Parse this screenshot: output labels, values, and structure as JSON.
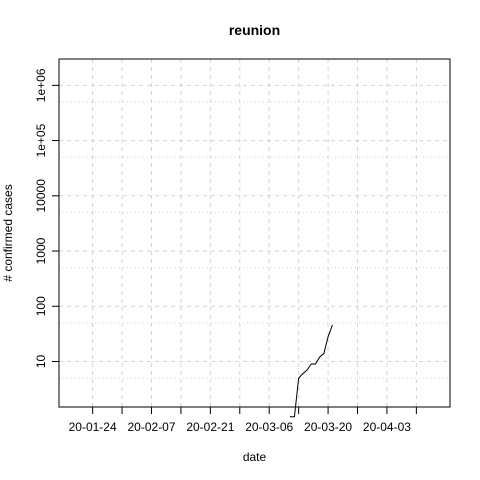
{
  "chart_data": {
    "type": "line",
    "title": "reunion",
    "xlabel": "date",
    "ylabel": "# confirmed cases",
    "y_scale": "log",
    "ylim": [
      1.5,
      3000000
    ],
    "xlim": [
      "2020-01-16",
      "2020-04-18"
    ],
    "grid": true,
    "x_ticks": [
      {
        "date": "2020-01-24",
        "label": "20-01-24"
      },
      {
        "date": "2020-02-07",
        "label": "20-02-07"
      },
      {
        "date": "2020-02-21",
        "label": "20-02-21"
      },
      {
        "date": "2020-03-06",
        "label": "20-03-06"
      },
      {
        "date": "2020-03-20",
        "label": "20-03-20"
      },
      {
        "date": "2020-04-03",
        "label": "20-04-03"
      }
    ],
    "x_minor_ticks": [
      "2020-01-31",
      "2020-02-14",
      "2020-02-28",
      "2020-03-13",
      "2020-03-27",
      "2020-04-10"
    ],
    "y_ticks": [
      {
        "value": 10,
        "label": "10"
      },
      {
        "value": 100,
        "label": "100"
      },
      {
        "value": 1000,
        "label": "1000"
      },
      {
        "value": 10000,
        "label": "10000"
      },
      {
        "value": 100000,
        "label": "1e+05"
      },
      {
        "value": 1000000,
        "label": "1e+06"
      }
    ],
    "series": [
      {
        "color": "#000000",
        "points": [
          {
            "x": "2020-03-11",
            "y": 1
          },
          {
            "x": "2020-03-12",
            "y": 1
          },
          {
            "x": "2020-03-13",
            "y": 5
          },
          {
            "x": "2020-03-14",
            "y": 6
          },
          {
            "x": "2020-03-15",
            "y": 7
          },
          {
            "x": "2020-03-16",
            "y": 9
          },
          {
            "x": "2020-03-17",
            "y": 9
          },
          {
            "x": "2020-03-18",
            "y": 12
          },
          {
            "x": "2020-03-19",
            "y": 14
          },
          {
            "x": "2020-03-20",
            "y": 28
          },
          {
            "x": "2020-03-21",
            "y": 45
          }
        ]
      }
    ]
  }
}
